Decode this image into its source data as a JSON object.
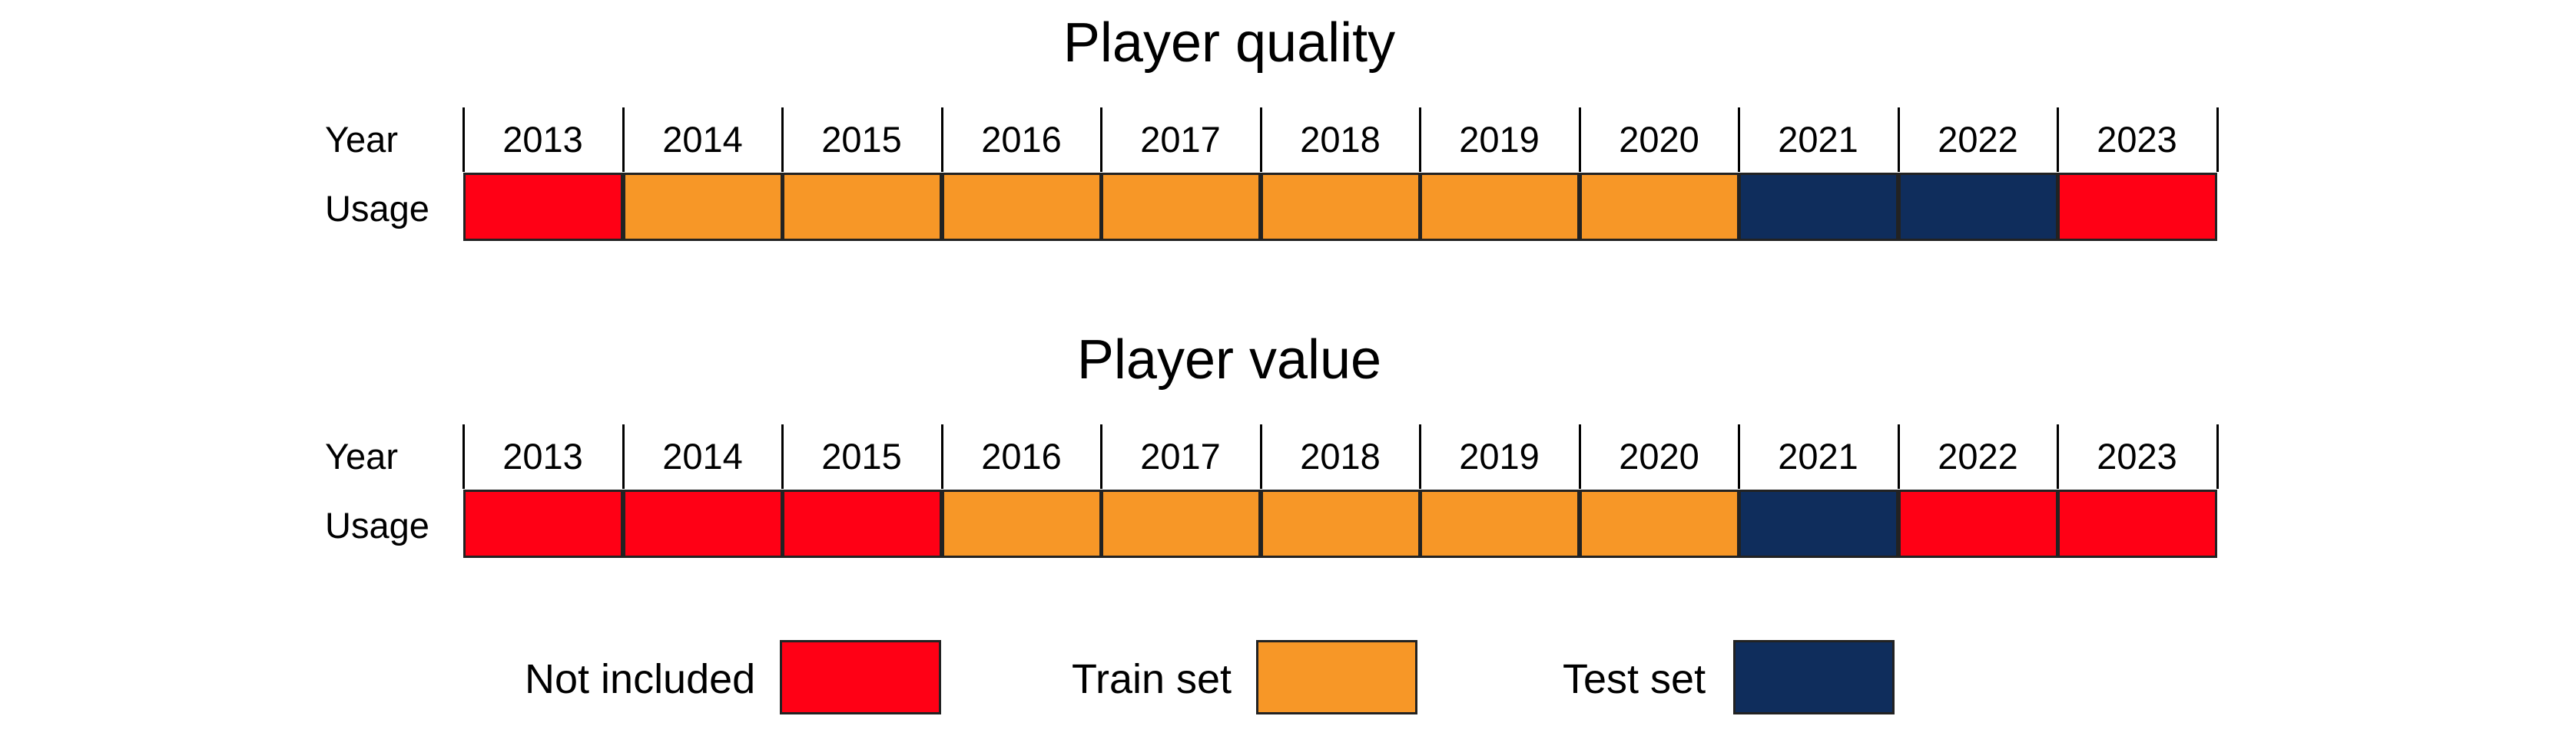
{
  "colors": {
    "Not included": "#ff0015",
    "Train set": "#f79727",
    "Test set": "#0f2d5c"
  },
  "row_labels": {
    "year": "Year",
    "usage": "Usage"
  },
  "years": [
    "2013",
    "2014",
    "2015",
    "2016",
    "2017",
    "2018",
    "2019",
    "2020",
    "2021",
    "2022",
    "2023"
  ],
  "panels": [
    {
      "title": "Player quality",
      "usage": [
        "Not included",
        "Train set",
        "Train set",
        "Train set",
        "Train set",
        "Train set",
        "Train set",
        "Train set",
        "Test set",
        "Test set",
        "Not included"
      ]
    },
    {
      "title": "Player value",
      "usage": [
        "Not included",
        "Not included",
        "Not included",
        "Train set",
        "Train set",
        "Train set",
        "Train set",
        "Train set",
        "Test set",
        "Not included",
        "Not included"
      ]
    }
  ],
  "legend": [
    {
      "label": "Not included",
      "key": "Not included"
    },
    {
      "label": "Train set",
      "key": "Train set"
    },
    {
      "label": "Test set",
      "key": "Test set"
    }
  ]
}
